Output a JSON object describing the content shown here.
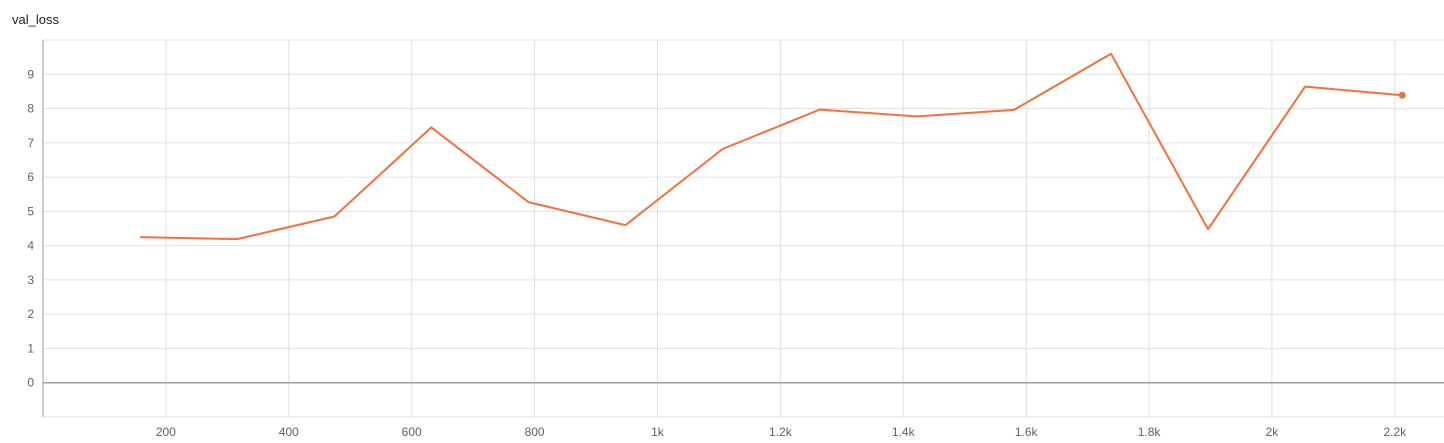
{
  "chart_data": {
    "type": "line",
    "title": "val_loss",
    "xlabel": "",
    "ylabel": "",
    "x_ticks": [
      200,
      400,
      600,
      800,
      1000,
      1200,
      1400,
      1600,
      1800,
      2000,
      2200
    ],
    "x_tick_labels": [
      "200",
      "400",
      "600",
      "800",
      "1k",
      "1.2k",
      "1.4k",
      "1.6k",
      "1.8k",
      "2k",
      "2.2k"
    ],
    "y_ticks": [
      0,
      1,
      2,
      3,
      4,
      5,
      6,
      7,
      8,
      9
    ],
    "y_tick_labels": [
      "0",
      "1",
      "2",
      "3",
      "4",
      "5",
      "6",
      "7",
      "8",
      "9"
    ],
    "xlim": [
      0,
      2280
    ],
    "ylim": [
      -1,
      10
    ],
    "grid": true,
    "series": [
      {
        "color": "#f4703f",
        "x": [
          158,
          316,
          474,
          632,
          790,
          948,
          1106,
          1264,
          1422,
          1580,
          1738,
          1896,
          2054,
          2212
        ],
        "y": [
          4.25,
          4.19,
          4.85,
          7.45,
          5.27,
          4.6,
          6.82,
          7.97,
          7.77,
          7.96,
          9.6,
          4.48,
          8.64,
          8.39
        ]
      }
    ]
  }
}
